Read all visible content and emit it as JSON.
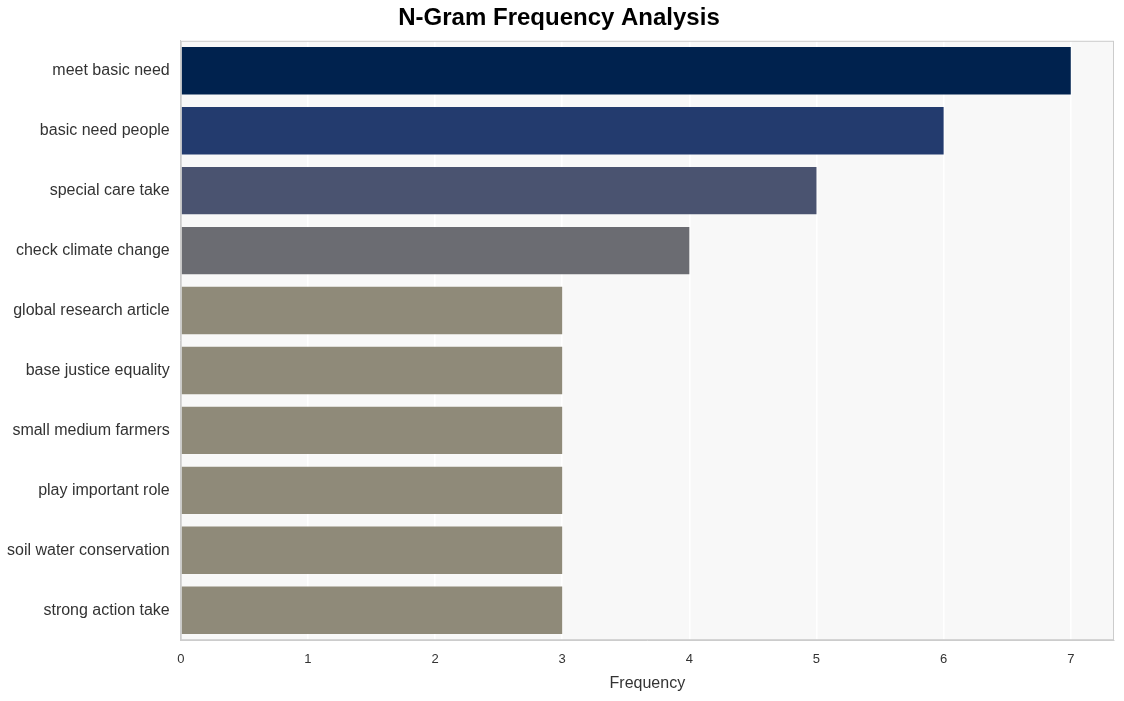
{
  "chart_data": {
    "type": "bar",
    "orientation": "horizontal",
    "title": "N-Gram Frequency Analysis",
    "x_label": "Frequency",
    "categories": [
      "meet basic need",
      "basic need people",
      "special care take",
      "check climate change",
      "global research article",
      "base justice equality",
      "small medium farmers",
      "play important role",
      "soil water conservation",
      "strong action take"
    ],
    "values": [
      7,
      6,
      5,
      4,
      3,
      3,
      3,
      3,
      3,
      3
    ],
    "colors": [
      "#00224e",
      "#233b6e",
      "#4a5370",
      "#6b6c72",
      "#8f8a79",
      "#8f8a79",
      "#8f8a79",
      "#8f8a79",
      "#8f8a79",
      "#8f8a79"
    ],
    "xlim": [
      0,
      7.34
    ],
    "xticks": [
      0,
      1,
      2,
      3,
      4,
      5,
      6,
      7
    ],
    "grid": true
  }
}
